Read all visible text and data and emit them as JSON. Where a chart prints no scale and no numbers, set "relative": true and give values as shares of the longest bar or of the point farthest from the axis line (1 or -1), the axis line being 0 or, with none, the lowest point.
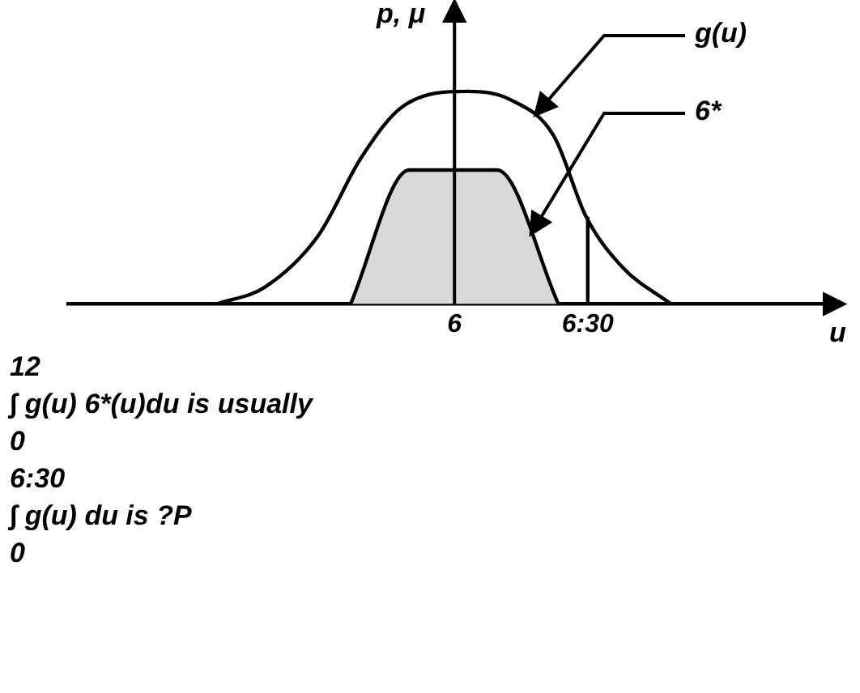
{
  "chart_data": {
    "type": "line",
    "relative": true,
    "xlabel": "u",
    "ylabel": "p, μ",
    "xlim": [
      4.55,
      7.4
    ],
    "xticks": [
      {
        "value": 6,
        "label": "6"
      },
      {
        "value": 6.5,
        "label": "6:30"
      }
    ],
    "tick_labels": "x",
    "grid": false,
    "legend": false,
    "marker": "none",
    "line_style": "solid",
    "ref_lines": [
      {
        "axis": "x",
        "value": 6
      }
    ],
    "series": [
      {
        "name": "g(u)",
        "color": "#000000",
        "x": [
          5.108,
          5.289,
          5.488,
          5.651,
          5.807,
          6.05,
          6.211,
          6.373,
          6.494,
          6.633,
          6.813
        ],
        "values": [
          0,
          0.08,
          0.32,
          0.69,
          0.93,
          1,
          0.96,
          0.79,
          0.41,
          0.17,
          0
        ]
      },
      {
        "name": "6*",
        "type": "area",
        "color": "#d9d9d9",
        "x": [
          5.61,
          5.83,
          6.16,
          6.39
        ],
        "values": [
          0,
          0.63,
          0.63,
          0
        ]
      },
      {
        "color": "#000000",
        "x": [
          6.5,
          6.5
        ],
        "values": [
          0,
          0.41
        ]
      }
    ],
    "annotations": [
      "12",
      "∫ g(u) 6*(u)du is usually",
      "0",
      "6:30",
      "∫ g(u) du is ?P",
      "0"
    ]
  }
}
